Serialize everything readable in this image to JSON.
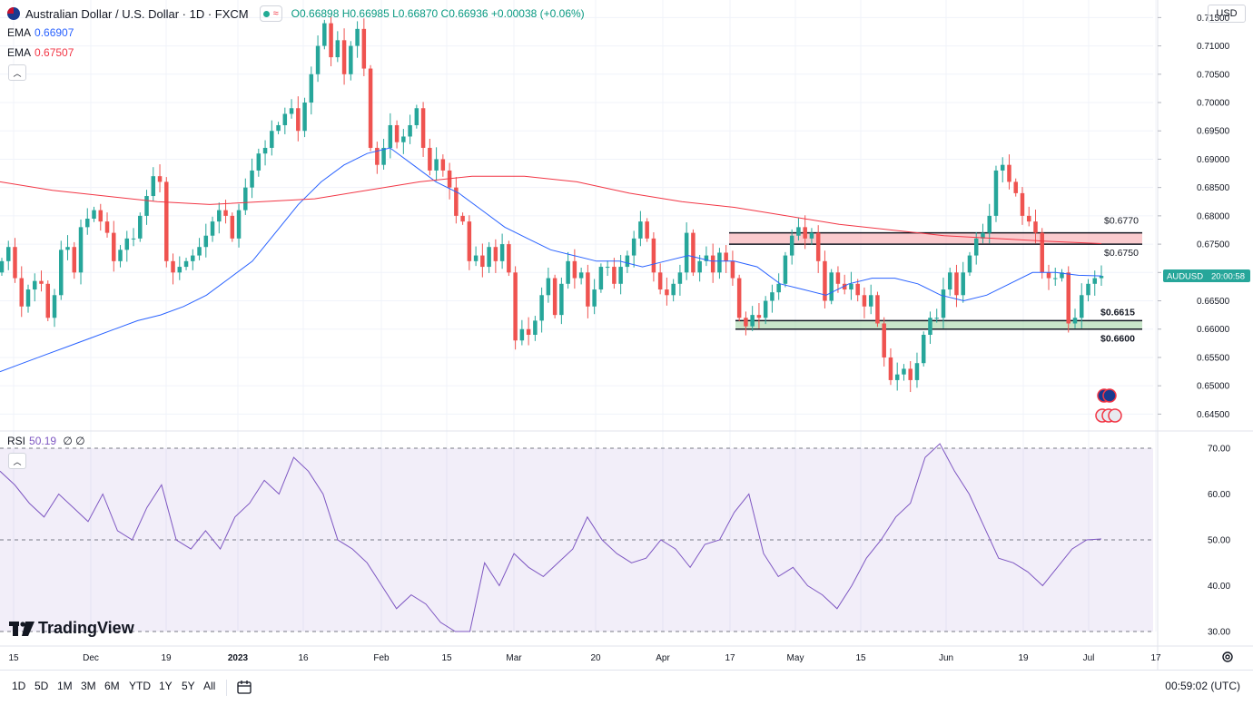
{
  "header": {
    "symbol": "Australian Dollar / U.S. Dollar · 1D · FXCM",
    "open": "O0.66898",
    "high": "H0.66985",
    "low": "L0.66870",
    "close": "C0.66936",
    "change": "+0.00038 (+0.06%)"
  },
  "indicators": [
    {
      "name": "EMA",
      "value": "0.66907",
      "color": "#2962ff"
    },
    {
      "name": "EMA",
      "value": "0.67507",
      "color": "#f23645"
    }
  ],
  "rsi_label": {
    "name": "RSI",
    "value": "50.19",
    "extra": "∅ ∅"
  },
  "currency": "USD",
  "price_tag": {
    "symbol": "AUDUSD",
    "time": "20:00:58"
  },
  "levels": {
    "resistance_top": "$0.6770",
    "resistance_bottom": "$0.6750",
    "support_top": "$0.6615",
    "support_bottom": "$0.6600"
  },
  "timeframes": [
    "1D",
    "5D",
    "1M",
    "3M",
    "6M",
    "YTD",
    "1Y",
    "5Y",
    "All"
  ],
  "clock": "00:59:02 (UTC)",
  "brand": "TradingView",
  "chart_data": {
    "type": "candlestick",
    "title": "Australian Dollar / U.S. Dollar · 1D · FXCM",
    "price_axis": {
      "ticks": [
        "0.71500",
        "0.71000",
        "0.70500",
        "0.70000",
        "0.69500",
        "0.69000",
        "0.68500",
        "0.68000",
        "0.67500",
        "0.67000",
        "0.66500",
        "0.66000",
        "0.65500",
        "0.65000",
        "0.64500"
      ],
      "range": [
        0.6425,
        0.7165
      ]
    },
    "x_ticks": [
      "15",
      "Dec",
      "19",
      "2023",
      "16",
      "Feb",
      "15",
      "Mar",
      "20",
      "Apr",
      "17",
      "May",
      "15",
      "Jun",
      "19",
      "Jul",
      "17"
    ],
    "rsi_axis": {
      "ticks": [
        "70.00",
        "60.00",
        "50.00",
        "40.00",
        "30.00"
      ],
      "range": [
        30,
        70
      ]
    },
    "candles_close": [
      0.672,
      0.6745,
      0.669,
      0.664,
      0.667,
      0.6685,
      0.668,
      0.662,
      0.666,
      0.674,
      0.6745,
      0.67,
      0.678,
      0.6795,
      0.681,
      0.679,
      0.677,
      0.672,
      0.674,
      0.676,
      0.676,
      0.68,
      0.6835,
      0.687,
      0.686,
      0.672,
      0.67,
      0.671,
      0.672,
      0.673,
      0.6745,
      0.6765,
      0.679,
      0.681,
      0.68,
      0.676,
      0.681,
      0.685,
      0.688,
      0.691,
      0.692,
      0.695,
      0.696,
      0.698,
      0.699,
      0.695,
      0.7,
      0.705,
      0.71,
      0.714,
      0.708,
      0.711,
      0.705,
      0.71,
      0.713,
      0.706,
      0.692,
      0.689,
      0.692,
      0.696,
      0.693,
      0.694,
      0.696,
      0.699,
      0.692,
      0.688,
      0.69,
      0.688,
      0.685,
      0.68,
      0.679,
      0.672,
      0.673,
      0.671,
      0.6745,
      0.672,
      0.675,
      0.67,
      0.658,
      0.66,
      0.659,
      0.6615,
      0.666,
      0.669,
      0.6625,
      0.668,
      0.672,
      0.669,
      0.67,
      0.664,
      0.667,
      0.671,
      0.671,
      0.668,
      0.671,
      0.673,
      0.676,
      0.679,
      0.676,
      0.67,
      0.667,
      0.666,
      0.668,
      0.67,
      0.677,
      0.67,
      0.672,
      0.673,
      0.67,
      0.6735,
      0.672,
      0.669,
      0.662,
      0.6605,
      0.6625,
      0.662,
      0.665,
      0.6665,
      0.668,
      0.673,
      0.6765,
      0.678,
      0.676,
      0.677,
      0.672,
      0.665,
      0.67,
      0.668,
      0.667,
      0.668,
      0.666,
      0.664,
      0.666,
      0.661,
      0.655,
      0.651,
      0.652,
      0.653,
      0.651,
      0.654,
      0.659,
      0.662,
      0.662,
      0.667,
      0.67,
      0.666,
      0.67,
      0.673,
      0.676,
      0.677,
      0.68,
      0.688,
      0.689,
      0.686,
      0.684,
      0.68,
      0.679,
      0.677,
      0.67,
      0.669,
      0.669,
      0.67,
      0.661,
      0.662,
      0.666,
      0.668,
      0.669,
      0.6694
    ],
    "ema_fast_approx": [
      0.6525,
      0.654,
      0.6555,
      0.657,
      0.6585,
      0.66,
      0.6615,
      0.6625,
      0.664,
      0.666,
      0.669,
      0.672,
      0.677,
      0.682,
      0.686,
      0.689,
      0.691,
      0.692,
      0.689,
      0.686,
      0.684,
      0.681,
      0.678,
      0.676,
      0.674,
      0.673,
      0.672,
      0.672,
      0.671,
      0.672,
      0.673,
      0.672,
      0.672,
      0.671,
      0.668,
      0.667,
      0.666,
      0.668,
      0.669,
      0.669,
      0.668,
      0.666,
      0.665,
      0.666,
      0.668,
      0.67,
      0.67,
      0.6695,
      0.6694
    ],
    "ema_slow_approx": [
      0.686,
      0.6845,
      0.6835,
      0.6825,
      0.682,
      0.6825,
      0.683,
      0.6845,
      0.686,
      0.687,
      0.687,
      0.686,
      0.684,
      0.6825,
      0.6815,
      0.68,
      0.6785,
      0.6775,
      0.6765,
      0.676,
      0.6755,
      0.6751
    ],
    "rsi_approx": [
      65,
      62,
      58,
      55,
      60,
      57,
      54,
      60,
      52,
      50,
      57,
      62,
      50,
      48,
      52,
      48,
      55,
      58,
      63,
      60,
      68,
      65,
      60,
      50,
      48,
      45,
      40,
      35,
      38,
      36,
      32,
      30,
      30,
      45,
      40,
      47,
      44,
      42,
      45,
      48,
      55,
      50,
      47,
      45,
      46,
      50,
      48,
      44,
      49,
      50,
      56,
      60,
      47,
      42,
      44,
      40,
      38,
      35,
      40,
      46,
      50,
      55,
      58,
      68,
      71,
      65,
      60,
      53,
      46,
      45,
      43,
      40,
      44,
      48,
      50,
      50.19
    ]
  }
}
